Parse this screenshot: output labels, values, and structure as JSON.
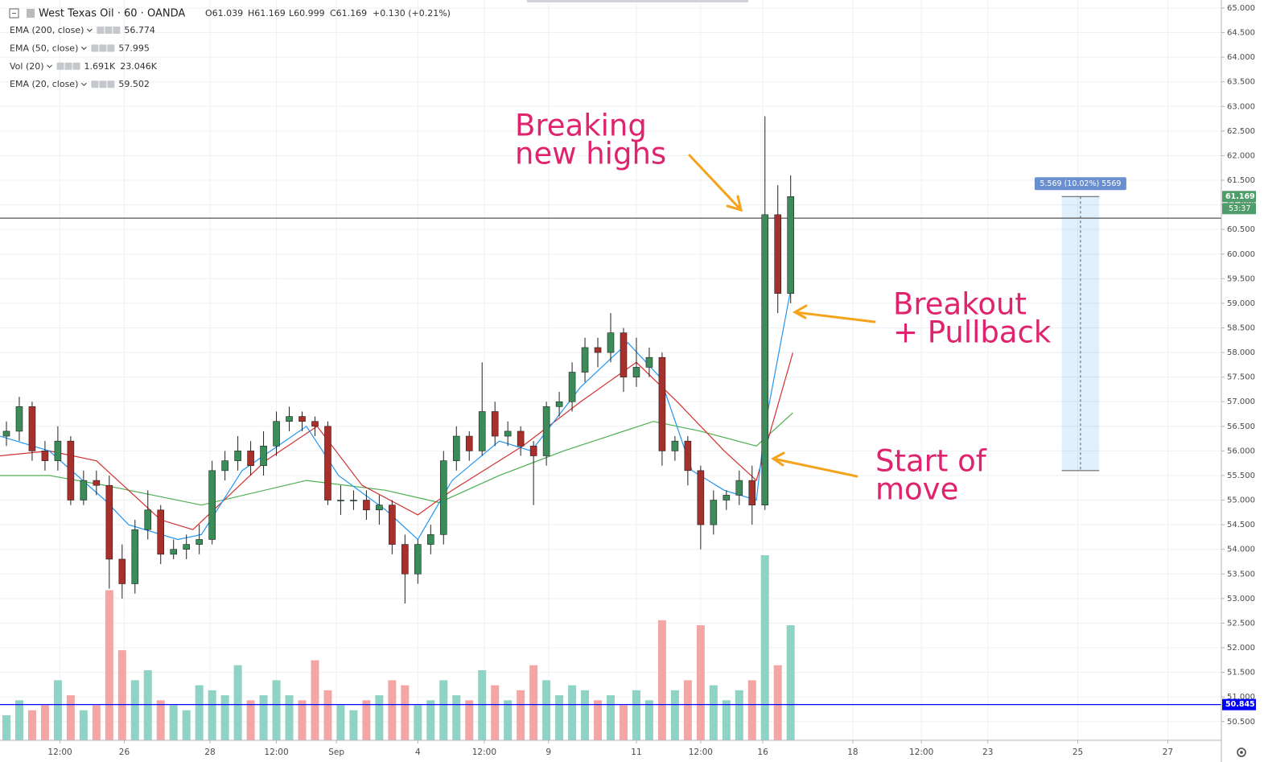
{
  "header": {
    "symbol": "West Texas Oil · 60 · OANDA",
    "ohlc": [
      "O61.039",
      "H61.169",
      "L60.999",
      "C61.169"
    ],
    "change": "+0.130 (+0.21%)"
  },
  "chart_data": {
    "type": "candlestick",
    "x": [
      3,
      9,
      15,
      21,
      27,
      33,
      39,
      45,
      51,
      57,
      63,
      69,
      75,
      81,
      87,
      93,
      99,
      105,
      111,
      117,
      123,
      129,
      135,
      141,
      147,
      153,
      159,
      165,
      171,
      177,
      183,
      189,
      195,
      201,
      207,
      213,
      219,
      225,
      231,
      237,
      243,
      249,
      255,
      261,
      267,
      273,
      279,
      285,
      291,
      297,
      303,
      309,
      315,
      321,
      327,
      333,
      339,
      345,
      351,
      357,
      363,
      369
    ],
    "open": [
      56.3,
      56.4,
      56.9,
      56.0,
      55.8,
      56.2,
      55.0,
      55.4,
      55.3,
      53.8,
      53.3,
      54.4,
      54.8,
      53.9,
      54.0,
      54.1,
      54.2,
      55.6,
      55.8,
      56.0,
      55.7,
      56.1,
      56.6,
      56.7,
      56.6,
      56.5,
      55.0,
      55.0,
      55.0,
      54.8,
      54.9,
      54.1,
      53.5,
      54.1,
      54.3,
      55.8,
      56.3,
      56.0,
      56.8,
      56.3,
      56.4,
      56.1,
      55.9,
      56.9,
      57.0,
      57.6,
      58.1,
      58.0,
      58.4,
      57.5,
      57.7,
      57.9,
      56.0,
      56.2,
      55.6,
      54.5,
      55.0,
      55.1,
      55.4,
      54.9,
      60.8,
      59.2
    ],
    "high": [
      56.6,
      57.1,
      57.0,
      56.2,
      56.5,
      56.3,
      55.6,
      55.6,
      55.5,
      54.1,
      54.6,
      55.2,
      54.9,
      54.2,
      54.3,
      54.5,
      55.8,
      56.0,
      56.3,
      56.2,
      56.4,
      56.8,
      56.9,
      56.8,
      56.7,
      56.6,
      55.3,
      55.2,
      55.2,
      55.1,
      55.0,
      54.3,
      54.2,
      54.5,
      56.0,
      56.5,
      56.4,
      57.8,
      57.0,
      56.6,
      56.5,
      56.2,
      57.0,
      57.2,
      57.8,
      58.3,
      58.3,
      58.8,
      58.5,
      58.3,
      58.1,
      58.0,
      56.3,
      56.3,
      55.7,
      55.2,
      55.2,
      55.6,
      55.7,
      62.8,
      61.4,
      61.6
    ],
    "low": [
      56.1,
      56.2,
      55.8,
      55.6,
      55.6,
      54.9,
      54.9,
      55.1,
      53.2,
      53.0,
      53.1,
      54.2,
      53.7,
      53.8,
      53.8,
      53.9,
      54.1,
      55.4,
      55.6,
      55.5,
      55.5,
      55.9,
      56.4,
      56.4,
      56.3,
      54.9,
      54.7,
      54.8,
      54.6,
      54.5,
      53.9,
      52.9,
      53.3,
      53.9,
      54.1,
      55.6,
      55.8,
      55.9,
      56.1,
      56.1,
      55.9,
      54.9,
      55.7,
      56.7,
      56.8,
      57.4,
      57.7,
      57.8,
      57.2,
      57.3,
      57.5,
      55.7,
      55.8,
      55.3,
      54.0,
      54.3,
      54.8,
      54.9,
      54.5,
      54.8,
      58.8,
      59.0
    ],
    "close": [
      56.4,
      56.9,
      56.0,
      55.8,
      56.2,
      55.0,
      55.4,
      55.3,
      53.8,
      53.3,
      54.4,
      54.8,
      53.9,
      54.0,
      54.1,
      54.2,
      55.6,
      55.8,
      56.0,
      55.7,
      56.1,
      56.6,
      56.7,
      56.6,
      56.5,
      55.0,
      55.0,
      55.0,
      54.8,
      54.9,
      54.1,
      53.5,
      54.1,
      54.3,
      55.8,
      56.3,
      56.0,
      56.8,
      56.3,
      56.4,
      56.1,
      55.9,
      56.9,
      57.0,
      57.6,
      58.1,
      58.0,
      58.4,
      57.5,
      57.7,
      57.9,
      56.0,
      56.2,
      55.6,
      54.5,
      55.0,
      55.1,
      55.4,
      54.9,
      60.8,
      59.2,
      61.169
    ],
    "up_color": "#3c8c5a",
    "down_color": "#a8302c",
    "wick_color": "#222222",
    "volume": {
      "name": "Vol (20)",
      "values": [
        25,
        40,
        30,
        35,
        60,
        45,
        30,
        35,
        150,
        90,
        60,
        70,
        40,
        35,
        30,
        55,
        50,
        45,
        75,
        40,
        45,
        60,
        45,
        40,
        80,
        50,
        35,
        30,
        40,
        45,
        60,
        55,
        35,
        40,
        60,
        45,
        40,
        70,
        55,
        40,
        50,
        75,
        60,
        45,
        55,
        50,
        40,
        45,
        35,
        50,
        40,
        120,
        50,
        60,
        115,
        55,
        40,
        50,
        60,
        185,
        75,
        115
      ],
      "up_color": "#8ed3c4",
      "down_color": "#f4a6a6",
      "legend_values": [
        "1.691K",
        "23.046K"
      ],
      "legend_colors": [
        "#26a69a",
        "#ff9800"
      ]
    },
    "series": [
      {
        "name": "EMA (200, close)",
        "color": "#4caf50",
        "x": [
          0,
          23,
          49,
          94,
          143,
          180,
          205,
          233,
          263,
          305,
          327,
          353,
          370
        ],
        "values": [
          55.5,
          55.5,
          55.3,
          54.9,
          55.4,
          55.2,
          54.95,
          55.5,
          56.0,
          56.6,
          56.4,
          56.1,
          56.774
        ]
      },
      {
        "name": "EMA (50, close)",
        "color": "#d32f2f",
        "x": [
          0,
          23,
          45,
          75,
          90,
          124,
          148,
          169,
          195,
          211,
          244,
          271,
          297,
          316,
          338,
          353,
          370
        ],
        "values": [
          55.9,
          56.0,
          55.8,
          54.6,
          54.4,
          55.8,
          56.5,
          55.3,
          54.7,
          55.2,
          56.1,
          57.0,
          57.8,
          57.0,
          56.0,
          55.4,
          57.995
        ]
      },
      {
        "name": "EMA (20, close)",
        "color": "#2196f3",
        "x": [
          0,
          23,
          49,
          60,
          83,
          94,
          113,
          143,
          158,
          180,
          195,
          211,
          233,
          248,
          271,
          293,
          308,
          323,
          338,
          353,
          357,
          370
        ],
        "values": [
          56.3,
          56.0,
          55.0,
          54.5,
          54.2,
          54.3,
          55.6,
          56.5,
          55.5,
          54.8,
          54.2,
          55.4,
          56.2,
          56.0,
          57.3,
          58.2,
          57.5,
          55.6,
          55.2,
          55.0,
          56.5,
          59.502
        ]
      }
    ],
    "xlim": [
      0,
      570
    ],
    "xticks": [
      {
        "value": 28,
        "label": "12:00"
      },
      {
        "value": 58,
        "label": "26"
      },
      {
        "value": 98,
        "label": "28"
      },
      {
        "value": 129,
        "label": "12:00"
      },
      {
        "value": 157,
        "label": "Sep"
      },
      {
        "value": 195,
        "label": "4"
      },
      {
        "value": 226,
        "label": "12:00"
      },
      {
        "value": 256,
        "label": "9"
      },
      {
        "value": 297,
        "label": "11"
      },
      {
        "value": 327,
        "label": "12:00"
      },
      {
        "value": 356,
        "label": "16"
      },
      {
        "value": 398,
        "label": "18"
      },
      {
        "value": 430,
        "label": "12:00"
      },
      {
        "value": 461,
        "label": "23"
      },
      {
        "value": 503,
        "label": "25"
      },
      {
        "value": 545,
        "label": "27"
      }
    ],
    "ylim": [
      50.12,
      65.163
    ],
    "yticks": [
      {
        "value": 50.5,
        "label": "50.500"
      },
      {
        "value": 51,
        "label": "51.000"
      },
      {
        "value": 51.5,
        "label": "51.500"
      },
      {
        "value": 52,
        "label": "52.000"
      },
      {
        "value": 52.5,
        "label": "52.500"
      },
      {
        "value": 53,
        "label": "53.000"
      },
      {
        "value": 53.5,
        "label": "53.500"
      },
      {
        "value": 54,
        "label": "54.000"
      },
      {
        "value": 54.5,
        "label": "54.500"
      },
      {
        "value": 55,
        "label": "55.000"
      },
      {
        "value": 55.5,
        "label": "55.500"
      },
      {
        "value": 56,
        "label": "56.000"
      },
      {
        "value": 56.5,
        "label": "56.500"
      },
      {
        "value": 57,
        "label": "57.000"
      },
      {
        "value": 57.5,
        "label": "57.500"
      },
      {
        "value": 58,
        "label": "58.000"
      },
      {
        "value": 58.5,
        "label": "58.500"
      },
      {
        "value": 59,
        "label": "59.000"
      },
      {
        "value": 59.5,
        "label": "59.500"
      },
      {
        "value": 60,
        "label": "60.000"
      },
      {
        "value": 60.5,
        "label": "60.500"
      },
      {
        "value": 61,
        "label": "61.000"
      },
      {
        "value": 61.5,
        "label": "61.500"
      },
      {
        "value": 62,
        "label": "62.000"
      },
      {
        "value": 62.5,
        "label": "62.500"
      },
      {
        "value": 63,
        "label": "63.000"
      },
      {
        "value": 63.5,
        "label": "63.500"
      },
      {
        "value": 64,
        "label": "64.000"
      },
      {
        "value": 64.5,
        "label": "64.500"
      },
      {
        "value": 65,
        "label": "65.000"
      }
    ],
    "grid": true,
    "hlines": [
      {
        "value": 60.73,
        "color": "#555555"
      },
      {
        "value": 50.845,
        "color": "#0000ff"
      }
    ],
    "countdown": "53:37",
    "measure": {
      "x": [
        495.5,
        513
      ],
      "from": 55.6,
      "to": 61.169,
      "label": "5.569 (10.02%) 5569"
    },
    "annotations": [
      [
        "Breaking",
        "new highs"
      ],
      [
        "Breakout",
        "+ Pullback"
      ],
      [
        "Start of",
        "move"
      ]
    ]
  }
}
